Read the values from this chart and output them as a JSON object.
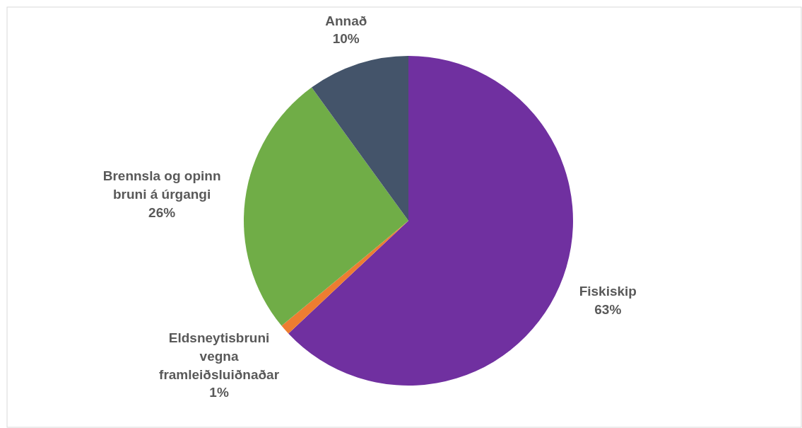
{
  "chart_data": {
    "type": "pie",
    "categories": [
      "Fiskiskip",
      "Eldsneytisbruni vegna framleiðsluiðnaðar",
      "Brennsla og opinn bruni á úrgangi",
      "Annað"
    ],
    "values": [
      63,
      1,
      26,
      10
    ],
    "colors": [
      "#7030a0",
      "#ed7d31",
      "#70ad47",
      "#44546a"
    ],
    "value_labels": [
      "63%",
      "1%",
      "26%",
      "10%"
    ]
  }
}
